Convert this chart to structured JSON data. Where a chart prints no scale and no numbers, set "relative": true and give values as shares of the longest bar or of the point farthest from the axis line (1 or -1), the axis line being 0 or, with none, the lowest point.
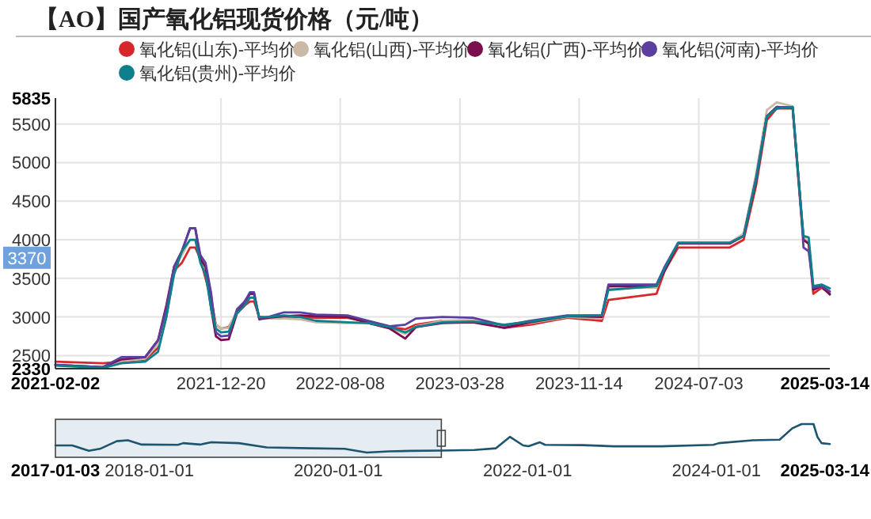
{
  "chart_data": [
    {
      "type": "line",
      "title": "【AO】国产氧化铝现货价格（元/吨）",
      "legend": "top",
      "grid": true,
      "x": [
        "2021-02-02",
        "2021-05-05",
        "2021-06-10",
        "2021-07-26",
        "2021-08-20",
        "2021-09-05",
        "2021-09-20",
        "2021-10-05",
        "2021-10-21",
        "2021-10-31",
        "2021-11-10",
        "2021-11-20",
        "2021-12-01",
        "2021-12-10",
        "2021-12-20",
        "2022-01-04",
        "2022-01-20",
        "2022-02-04",
        "2022-02-14",
        "2022-02-22",
        "2022-03-04",
        "2022-03-22",
        "2022-04-21",
        "2022-05-22",
        "2022-06-22",
        "2022-08-22",
        "2022-10-02",
        "2022-11-12",
        "2022-12-12",
        "2023-01-02",
        "2023-02-22",
        "2023-04-22",
        "2023-06-22",
        "2023-08-12",
        "2023-10-22",
        "2023-12-28",
        "2024-01-10",
        "2024-04-12",
        "2024-04-28",
        "2024-05-24",
        "2024-09-01",
        "2024-09-28",
        "2024-10-22",
        "2024-11-12",
        "2024-12-01",
        "2025-01-01",
        "2025-01-16",
        "2025-01-22",
        "2025-02-01",
        "2025-02-10",
        "2025-02-26",
        "2025-03-14"
      ],
      "series": [
        {
          "name": "氧化铝(山东)-平均价",
          "color": "#d6282a",
          "values": [
            2420,
            2400,
            2420,
            2450,
            2600,
            3000,
            3600,
            3700,
            3900,
            3900,
            3750,
            3500,
            3230,
            2900,
            2850,
            2870,
            3050,
            3150,
            3200,
            3200,
            3000,
            2980,
            3000,
            3000,
            2990,
            2990,
            2930,
            2870,
            2840,
            2900,
            2950,
            2950,
            2860,
            2900,
            2990,
            2950,
            3220,
            3300,
            3600,
            3900,
            3900,
            4000,
            4700,
            5550,
            5700,
            5700,
            4450,
            4000,
            3950,
            3300,
            3380,
            3300
          ]
        },
        {
          "name": "氧化铝(山西)-平均价",
          "color": "#c9b9a6",
          "values": [
            2380,
            2350,
            2430,
            2460,
            2650,
            3100,
            3650,
            3800,
            4000,
            4000,
            3800,
            3600,
            3150,
            2900,
            2850,
            2860,
            3080,
            3180,
            3300,
            3300,
            2990,
            2980,
            2980,
            2970,
            2930,
            2920,
            2920,
            2860,
            2780,
            2880,
            2950,
            2960,
            2880,
            2920,
            3000,
            2980,
            3380,
            3380,
            3650,
            3960,
            3960,
            4080,
            4850,
            5680,
            5780,
            5730,
            4500,
            4050,
            3950,
            3350,
            3400,
            3330
          ]
        },
        {
          "name": "氧化铝(广西)-平均价",
          "color": "#7b0f4e",
          "values": [
            2380,
            2350,
            2450,
            2480,
            2700,
            3150,
            3650,
            3850,
            4150,
            4150,
            3750,
            3650,
            3100,
            2750,
            2700,
            2710,
            3050,
            3200,
            3300,
            3300,
            2970,
            2990,
            3010,
            3020,
            3010,
            3000,
            2920,
            2850,
            2720,
            2870,
            2920,
            2930,
            2860,
            2930,
            3010,
            3000,
            3400,
            3400,
            3600,
            3950,
            3950,
            4050,
            4750,
            5600,
            5720,
            5710,
            4500,
            4000,
            3950,
            3350,
            3400,
            3290
          ]
        },
        {
          "name": "氧化铝(河南)-平均价",
          "color": "#5b3fa0",
          "values": [
            2380,
            2350,
            2480,
            2480,
            2700,
            3100,
            3650,
            3850,
            4150,
            4150,
            3800,
            3700,
            3300,
            2800,
            2750,
            2760,
            3100,
            3200,
            3320,
            3320,
            2980,
            3000,
            3060,
            3060,
            3030,
            3020,
            2950,
            2880,
            2900,
            2980,
            3000,
            2990,
            2890,
            2950,
            3020,
            3020,
            3420,
            3420,
            3650,
            3960,
            3960,
            4050,
            4800,
            5600,
            5720,
            5710,
            4500,
            3900,
            3850,
            3380,
            3400,
            3330
          ]
        },
        {
          "name": "氧化铝(贵州)-平均价",
          "color": "#0e7f8c",
          "values": [
            2370,
            2340,
            2400,
            2420,
            2550,
            3000,
            3550,
            3850,
            4000,
            4000,
            3700,
            3550,
            3100,
            2850,
            2800,
            2810,
            3050,
            3150,
            3250,
            3250,
            3000,
            3000,
            3020,
            3000,
            2950,
            2930,
            2920,
            2870,
            2800,
            2870,
            2930,
            2940,
            2900,
            2940,
            3010,
            3020,
            3350,
            3400,
            3630,
            3960,
            3960,
            4050,
            4780,
            5600,
            5700,
            5720,
            4500,
            4050,
            4030,
            3400,
            3420,
            3370
          ]
        }
      ],
      "xlim": [
        "2021-02-02",
        "2025-03-14"
      ],
      "xticks": [
        {
          "value": "2021-02-02",
          "label": "2021-02-02"
        },
        {
          "value": "2021-12-20",
          "label": "2021-12-20"
        },
        {
          "value": "2022-08-08",
          "label": "2022-08-08"
        },
        {
          "value": "2023-03-28",
          "label": "2023-03-28"
        },
        {
          "value": "2023-11-14",
          "label": "2023-11-14"
        },
        {
          "value": "2024-07-03",
          "label": "2024-07-03"
        },
        {
          "value": "2025-03-14",
          "label": "2025-03-14"
        }
      ],
      "ylim": [
        2330,
        5835
      ],
      "yticks": [
        2330,
        2500,
        3000,
        3500,
        4000,
        4500,
        5000,
        5500,
        5835
      ],
      "annotations": [
        "3370"
      ]
    },
    {
      "type": "line",
      "relative": true,
      "tick_labels": "x",
      "x": [
        "2017-01-03",
        "2017-03-09",
        "2017-05-12",
        "2017-06-24",
        "2017-08-28",
        "2017-10-10",
        "2017-12-02",
        "2018-04-21",
        "2018-05-12",
        "2018-07-16",
        "2018-08-28",
        "2018-12-13",
        "2019-03-30",
        "2019-09-18",
        "2020-01-25",
        "2020-04-20",
        "2020-07-15",
        "2020-10-09",
        "2021-02-03",
        "2021-06-10",
        "2021-09-01",
        "2021-10-25",
        "2021-12-15",
        "2022-01-05",
        "2022-02-18",
        "2022-03-10",
        "2022-08-01",
        "2022-12-01",
        "2023-06-01",
        "2023-12-20",
        "2024-01-10",
        "2024-05-20",
        "2024-09-01",
        "2024-10-20",
        "2024-11-25",
        "2025-01-10",
        "2025-01-25",
        "2025-02-10",
        "2025-03-14"
      ],
      "series": [
        {
          "color": "#1d5470",
          "values": [
            0.25,
            0.25,
            0.06,
            0.13,
            0.4,
            0.43,
            0.28,
            0.27,
            0.33,
            0.28,
            0.36,
            0.33,
            0.18,
            0.15,
            0.13,
            0.0,
            0.04,
            0.06,
            0.07,
            0.09,
            0.15,
            0.55,
            0.25,
            0.22,
            0.36,
            0.27,
            0.26,
            0.22,
            0.22,
            0.27,
            0.33,
            0.43,
            0.45,
            0.85,
            1,
            1,
            0.55,
            0.33,
            0.3
          ]
        }
      ],
      "xlim": [
        "2017-01-03",
        "2025-03-14"
      ],
      "xticks": [
        {
          "value": "2017-01-03",
          "label": "2017-01-03"
        },
        {
          "value": "2018-01-01",
          "label": "2018-01-01"
        },
        {
          "value": "2020-01-01",
          "label": "2020-01-01"
        },
        {
          "value": "2022-01-01",
          "label": "2022-01-01"
        },
        {
          "value": "2024-01-01",
          "label": "2024-01-01"
        },
        {
          "value": "2025-03-14",
          "label": "2025-03-14"
        }
      ],
      "bands": [
        {
          "axis": "x",
          "from": "2017-01-03",
          "to": "2021-02-02",
          "color": "#e6edf2"
        }
      ]
    }
  ]
}
